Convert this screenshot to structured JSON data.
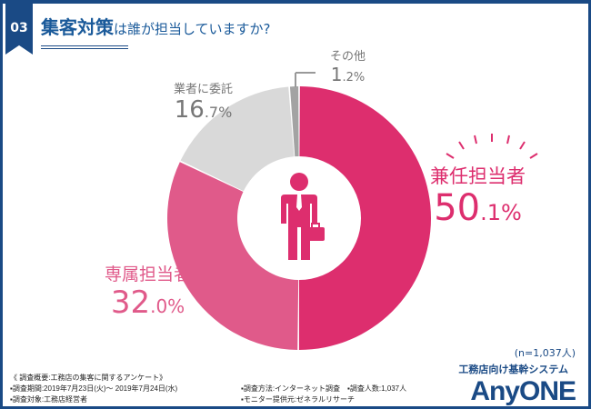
{
  "header": {
    "number": "03",
    "title_emphasis": "集客対策",
    "title_rest": "は誰が担当していますか?"
  },
  "chart_data": {
    "type": "pie",
    "donut": true,
    "start": "top",
    "direction": "clockwise",
    "categories": [
      "兼任担当者",
      "専属担当者",
      "業者に委託",
      "その他"
    ],
    "values": [
      50.1,
      32.0,
      16.7,
      1.2
    ],
    "value_labels": [
      {
        "int": "50",
        "dec": ".1%"
      },
      {
        "int": "32",
        "dec": ".0%"
      },
      {
        "int": "16",
        "dec": ".7%"
      },
      {
        "int": "1",
        "dec": ".2%"
      }
    ],
    "colors": [
      "#dd2e6e",
      "#e05a8a",
      "#d9d9d9",
      "#a3a3a3"
    ],
    "center_icon": "businessman-icon"
  },
  "sample": "(n=1,037人)",
  "footer": {
    "lines": [
      "《 調査概要:工務店の集客に関するアンケート》",
      "▪調査期間:2019年7月23日(火)～ 2019年7月24日(水)",
      "▪調査対象:工務店経営者"
    ],
    "right": [
      "▪調査方法:インターネット調査　▪調査人数:1,037人",
      "▪モニター提供元:ゼネラルリサーチ"
    ]
  },
  "logo": {
    "sub": "工務店向け基幹システム",
    "name": "AnyONE"
  }
}
